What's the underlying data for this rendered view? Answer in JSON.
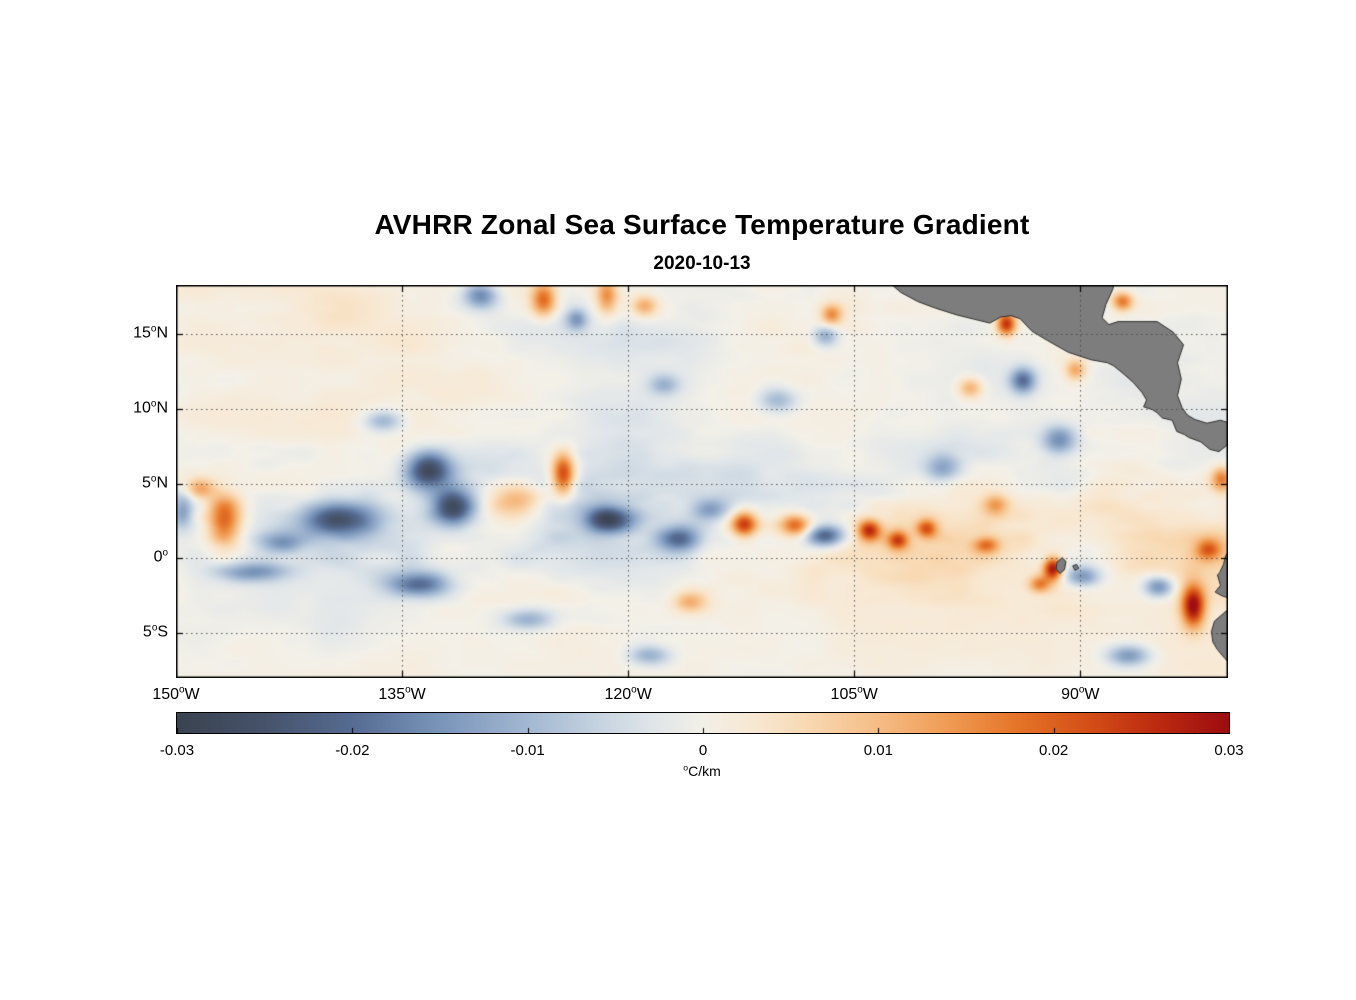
{
  "header": {
    "title": "AVHRR Zonal Sea Surface Temperature Gradient",
    "subtitle": "2020-10-13"
  },
  "chart_data": {
    "type": "heatmap",
    "title": "AVHRR Zonal Sea Surface Temperature Gradient",
    "subtitle": "2020-10-13",
    "axes": {
      "lon_range_deg_east": [
        -150,
        -80.2
      ],
      "lat_range_deg_north": [
        -8,
        18.3
      ],
      "x_ticks": [
        {
          "value": -150,
          "label": "150°W"
        },
        {
          "value": -135,
          "label": "135°W"
        },
        {
          "value": -120,
          "label": "120°W"
        },
        {
          "value": -105,
          "label": "105°W"
        },
        {
          "value": -90,
          "label": "90°W"
        }
      ],
      "y_ticks": [
        {
          "value": 15,
          "label": "15°N"
        },
        {
          "value": 10,
          "label": "10°N"
        },
        {
          "value": 5,
          "label": "5°N"
        },
        {
          "value": 0,
          "label": "0°"
        },
        {
          "value": -5,
          "label": "5°S"
        }
      ],
      "grid": "dotted"
    },
    "colorbar": {
      "min": -0.03,
      "max": 0.03,
      "ticks": [
        {
          "value": -0.03,
          "label": "-0.03"
        },
        {
          "value": -0.02,
          "label": "-0.02"
        },
        {
          "value": -0.01,
          "label": "-0.01"
        },
        {
          "value": 0,
          "label": "0"
        },
        {
          "value": 0.01,
          "label": "0.01"
        },
        {
          "value": 0.02,
          "label": "0.02"
        },
        {
          "value": 0.03,
          "label": "0.03"
        }
      ],
      "unit_label": "°C/km"
    },
    "colormap_stops": [
      [
        -0.03,
        "#3a4350"
      ],
      [
        -0.025,
        "#46536b"
      ],
      [
        -0.02,
        "#566c92"
      ],
      [
        -0.015,
        "#7a95ba"
      ],
      [
        -0.01,
        "#a3b8d2"
      ],
      [
        -0.006,
        "#c6d3e0"
      ],
      [
        -0.003,
        "#dfe5e9"
      ],
      [
        0.0,
        "#f3f0e8"
      ],
      [
        0.003,
        "#f8e8d2"
      ],
      [
        0.006,
        "#f8d9b3"
      ],
      [
        0.01,
        "#f6bd85"
      ],
      [
        0.014,
        "#f09c55"
      ],
      [
        0.018,
        "#e57428"
      ],
      [
        0.022,
        "#d44f17"
      ],
      [
        0.026,
        "#bc2a10"
      ],
      [
        0.03,
        "#9c0d10"
      ]
    ],
    "land": {
      "fill": "#7d7d7d",
      "edge": "#2f2f2f",
      "polygons": {
        "central_america": [
          [
            -102.6,
            18.4
          ],
          [
            -101.9,
            17.8
          ],
          [
            -100.8,
            17.2
          ],
          [
            -99.6,
            16.75
          ],
          [
            -98.2,
            16.3
          ],
          [
            -97.0,
            16.0
          ],
          [
            -96.0,
            15.75
          ],
          [
            -95.3,
            16.15
          ],
          [
            -94.6,
            16.25
          ],
          [
            -94.0,
            16.05
          ],
          [
            -93.2,
            15.2
          ],
          [
            -92.2,
            14.6
          ],
          [
            -90.8,
            13.8
          ],
          [
            -89.3,
            13.3
          ],
          [
            -88.2,
            13.1
          ],
          [
            -87.8,
            12.9
          ],
          [
            -87.3,
            12.5
          ],
          [
            -86.5,
            11.8
          ],
          [
            -85.9,
            11.1
          ],
          [
            -85.6,
            10.6
          ],
          [
            -85.8,
            10.15
          ],
          [
            -85.2,
            9.95
          ],
          [
            -84.9,
            9.75
          ],
          [
            -84.55,
            9.4
          ],
          [
            -83.9,
            9.25
          ],
          [
            -83.6,
            8.5
          ],
          [
            -83.1,
            8.3
          ],
          [
            -82.8,
            8.1
          ],
          [
            -82.0,
            7.8
          ],
          [
            -81.4,
            7.3
          ],
          [
            -80.8,
            7.15
          ],
          [
            -80.3,
            7.55
          ],
          [
            -80.0,
            8.0
          ],
          [
            -79.9,
            9.0
          ],
          [
            -80.7,
            9.25
          ],
          [
            -81.6,
            9.05
          ],
          [
            -82.4,
            9.3
          ],
          [
            -82.9,
            9.6
          ],
          [
            -83.25,
            10.1
          ],
          [
            -83.55,
            10.9
          ],
          [
            -83.3,
            12.0
          ],
          [
            -83.55,
            13.1
          ],
          [
            -83.15,
            14.3
          ],
          [
            -83.85,
            15.15
          ],
          [
            -84.9,
            15.85
          ],
          [
            -86.3,
            15.85
          ],
          [
            -87.5,
            15.85
          ],
          [
            -88.1,
            15.65
          ],
          [
            -88.55,
            16.1
          ],
          [
            -88.3,
            17.0
          ],
          [
            -87.85,
            18.0
          ],
          [
            -87.75,
            18.4
          ]
        ],
        "south_america": [
          [
            -80.05,
            1.2
          ],
          [
            -80.0,
            0.7
          ],
          [
            -80.35,
            0.2
          ],
          [
            -80.5,
            -0.4
          ],
          [
            -80.75,
            -0.95
          ],
          [
            -80.9,
            -1.1
          ],
          [
            -80.7,
            -1.8
          ],
          [
            -81.05,
            -2.25
          ],
          [
            -80.6,
            -2.5
          ],
          [
            -80.0,
            -2.7
          ],
          [
            -79.8,
            -3.2
          ],
          [
            -80.3,
            -3.5
          ],
          [
            -81.1,
            -4.2
          ],
          [
            -81.3,
            -4.9
          ],
          [
            -81.2,
            -5.6
          ],
          [
            -80.9,
            -6.1
          ],
          [
            -80.4,
            -6.7
          ],
          [
            -79.8,
            -7.3
          ],
          [
            -79.4,
            -8.3
          ],
          [
            -79.4,
            -8.6
          ],
          [
            -78.0,
            -8.6
          ],
          [
            -78.0,
            1.2
          ]
        ],
        "galapagos_1": [
          [
            -91.55,
            -0.25
          ],
          [
            -91.2,
            0.05
          ],
          [
            -90.95,
            -0.2
          ],
          [
            -91.05,
            -0.75
          ],
          [
            -91.35,
            -1.0
          ],
          [
            -91.6,
            -0.7
          ]
        ],
        "galapagos_2": [
          [
            -90.5,
            -0.5
          ],
          [
            -90.25,
            -0.4
          ],
          [
            -90.1,
            -0.65
          ],
          [
            -90.35,
            -0.8
          ]
        ]
      }
    },
    "field": {
      "units": "°C/km",
      "value_range": [
        -0.03,
        0.03
      ],
      "seed": 11,
      "base_amp": 0.009,
      "bias": 0.0006,
      "anisotropy": 2.0,
      "octaves": [
        [
          10,
          0.34
        ],
        [
          5,
          0.27
        ],
        [
          2.4,
          0.2
        ],
        [
          1.2,
          0.12
        ],
        [
          0.7,
          0.07
        ]
      ],
      "lat_activity": {
        "floor": 0.45,
        "eq_center": 2.5,
        "eq_sigma": 5.0,
        "eq_amp": 0.9,
        "north_center": 16,
        "north_sigma": 3.5,
        "north_amp": 0.3
      },
      "feature_format": [
        "lon_deg_east",
        "lat_deg_north",
        "sigma_lon_deg",
        "sigma_lat_deg",
        "amplitude_degC_per_km"
      ],
      "features": [
        [
          -146.8,
          2.6,
          0.8,
          1.3,
          0.021
        ],
        [
          -148.4,
          4.7,
          0.7,
          0.5,
          0.013
        ],
        [
          -149.6,
          3.2,
          0.5,
          0.9,
          -0.013
        ],
        [
          -144.9,
          -0.9,
          1.6,
          0.45,
          -0.013
        ],
        [
          -143.0,
          1.1,
          1.0,
          0.5,
          -0.011
        ],
        [
          -139.2,
          2.6,
          1.7,
          0.8,
          -0.023
        ],
        [
          -133.3,
          5.9,
          1.1,
          0.9,
          -0.027
        ],
        [
          -131.6,
          3.4,
          1.0,
          0.8,
          -0.026
        ],
        [
          -133.9,
          -1.7,
          1.5,
          0.6,
          -0.02
        ],
        [
          -136.2,
          9.2,
          0.9,
          0.5,
          -0.011
        ],
        [
          -129.8,
          17.6,
          0.8,
          0.6,
          -0.017
        ],
        [
          -125.6,
          17.3,
          0.6,
          0.8,
          0.02
        ],
        [
          -121.4,
          17.6,
          0.5,
          0.9,
          0.015
        ],
        [
          -124.3,
          5.6,
          0.55,
          1.0,
          0.026
        ],
        [
          -127.4,
          4.0,
          1.5,
          0.9,
          0.015
        ],
        [
          -121.3,
          2.6,
          1.1,
          0.6,
          -0.024
        ],
        [
          -116.6,
          1.3,
          1.0,
          0.6,
          -0.019
        ],
        [
          -112.3,
          2.3,
          0.6,
          0.6,
          0.023
        ],
        [
          -114.6,
          3.3,
          0.8,
          0.5,
          -0.012
        ],
        [
          -108.9,
          2.2,
          0.7,
          0.5,
          0.019
        ],
        [
          -106.9,
          1.5,
          0.9,
          0.5,
          -0.023
        ],
        [
          -104.0,
          1.9,
          0.55,
          0.5,
          0.024
        ],
        [
          -102.1,
          1.2,
          0.5,
          0.45,
          0.02
        ],
        [
          -100.2,
          2.0,
          0.5,
          0.45,
          0.018
        ],
        [
          -96.2,
          0.9,
          0.6,
          0.4,
          0.014
        ],
        [
          -106.5,
          16.3,
          0.5,
          0.5,
          0.015
        ],
        [
          -106.9,
          14.9,
          0.6,
          0.5,
          -0.013
        ],
        [
          -94.9,
          15.7,
          0.45,
          0.55,
          0.026
        ],
        [
          -93.8,
          11.9,
          0.6,
          0.6,
          -0.019
        ],
        [
          -97.3,
          11.4,
          0.6,
          0.5,
          0.013
        ],
        [
          -91.4,
          7.9,
          0.8,
          0.7,
          -0.015
        ],
        [
          -91.8,
          -0.7,
          0.45,
          0.55,
          0.029
        ],
        [
          -92.7,
          -1.7,
          0.5,
          0.4,
          0.015
        ],
        [
          -89.8,
          -1.2,
          0.8,
          0.5,
          -0.015
        ],
        [
          -84.8,
          -1.9,
          0.7,
          0.5,
          -0.017
        ],
        [
          -82.5,
          -3.2,
          0.55,
          1.0,
          0.029
        ],
        [
          -81.5,
          0.6,
          0.6,
          0.5,
          0.015
        ],
        [
          -80.6,
          5.3,
          0.5,
          0.6,
          0.017
        ],
        [
          -86.8,
          -6.5,
          1.0,
          0.5,
          -0.015
        ],
        [
          -118.6,
          -6.5,
          1.0,
          0.5,
          -0.012
        ],
        [
          -115.9,
          -2.9,
          0.8,
          0.5,
          0.011
        ],
        [
          -126.6,
          -4.1,
          1.2,
          0.5,
          -0.011
        ],
        [
          -99.1,
          6.1,
          0.8,
          0.6,
          -0.012
        ],
        [
          -110.1,
          10.6,
          0.9,
          0.6,
          -0.011
        ],
        [
          -117.6,
          11.6,
          0.7,
          0.5,
          -0.01
        ],
        [
          -95.6,
          3.6,
          0.6,
          0.5,
          0.012
        ],
        [
          -90.3,
          12.6,
          0.5,
          0.5,
          0.013
        ],
        [
          -87.2,
          17.2,
          0.5,
          0.45,
          0.018
        ],
        [
          -123.4,
          16.0,
          0.5,
          0.5,
          -0.013
        ],
        [
          -118.9,
          16.9,
          0.6,
          0.5,
          0.012
        ]
      ]
    }
  }
}
